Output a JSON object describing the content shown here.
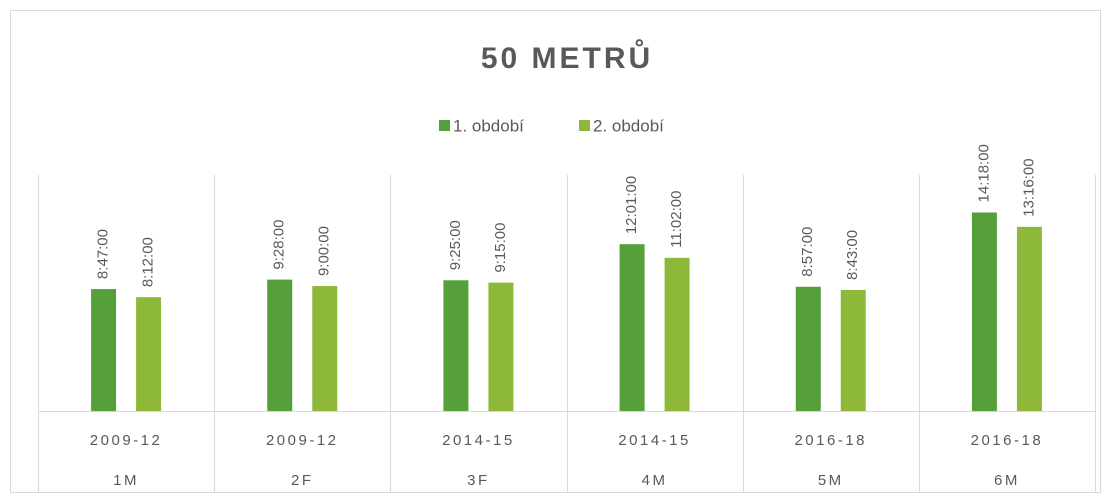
{
  "chart_data": {
    "type": "bar",
    "title": "50 METRŮ",
    "categories": [
      "1M",
      "2F",
      "3F",
      "4M",
      "5M",
      "6M"
    ],
    "category_periods": [
      "2009-12",
      "2009-12",
      "2014-15",
      "2014-15",
      "2016-18",
      "2016-18"
    ],
    "ylim": [
      0,
      61200
    ],
    "legend": "top",
    "series": [
      {
        "name": "1. období",
        "color": "#55a03b",
        "values": [
          31620,
          34080,
          33900,
          43260,
          32220,
          51480
        ],
        "value_labels": [
          "8:47:00",
          "9:28:00",
          "9:25:00",
          "12:01:00",
          "8:57:00",
          "14:18:00"
        ]
      },
      {
        "name": "2. období",
        "color": "#8db83a",
        "values": [
          29520,
          32400,
          33300,
          39720,
          31380,
          47760
        ],
        "value_labels": [
          "8:12:00",
          "9:00:00",
          "9:15:00",
          "11:02:00",
          "8:43:00",
          "13:16:00"
        ]
      }
    ]
  }
}
